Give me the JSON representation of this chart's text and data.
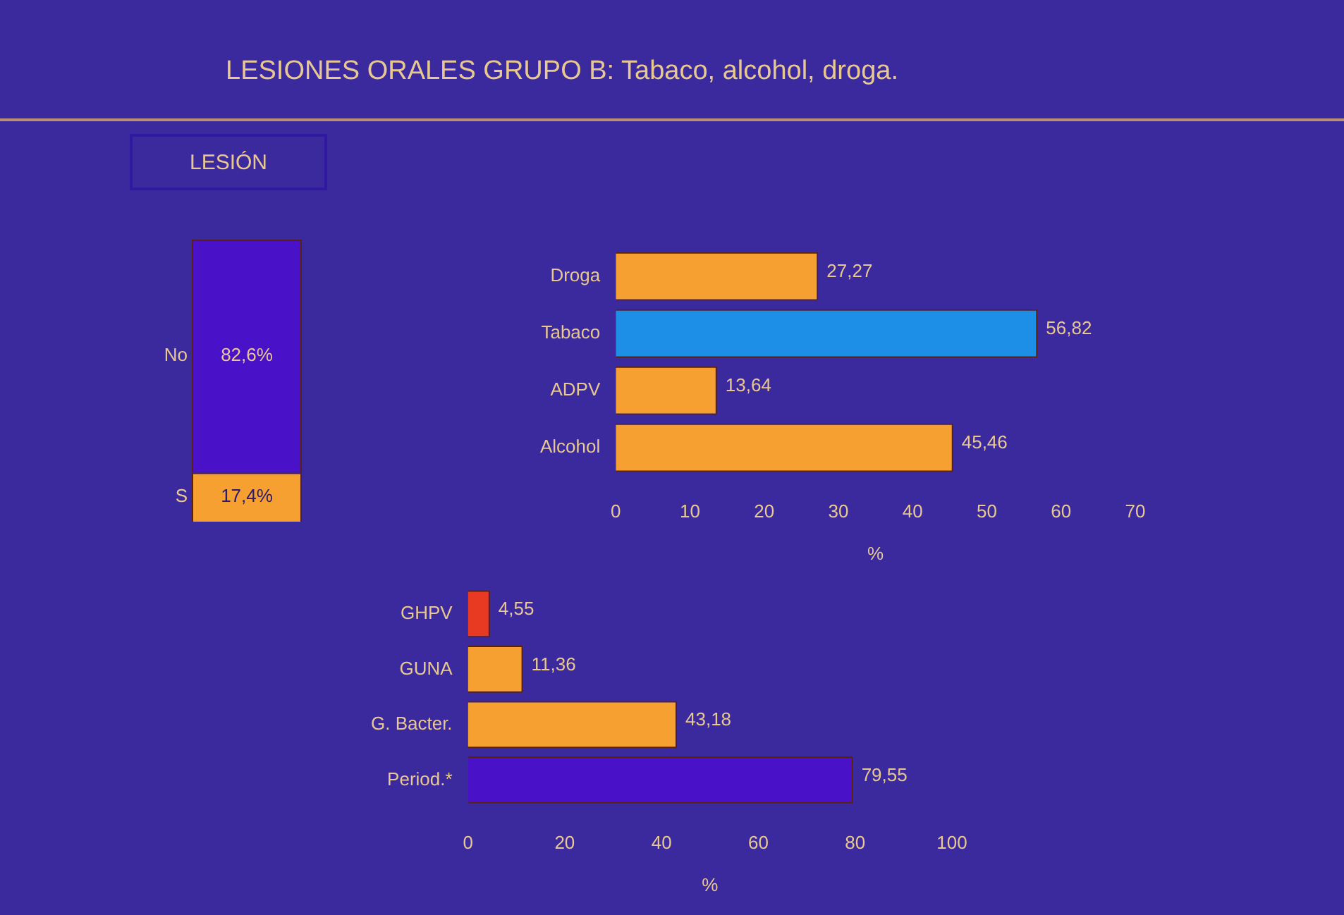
{
  "chart_data": [
    {
      "type": "bar",
      "stacked": true,
      "title": "LESIONES ORALES GRUPO B: Tabaco, alcohol, droga.",
      "subtitle": "LESIÓN",
      "categories": [
        null
      ],
      "series": [
        {
          "name": "S",
          "color": "#f5a030",
          "values": [
            17.4
          ],
          "value_labels": [
            "17,4%"
          ]
        },
        {
          "name": "No",
          "color": "#4a12c8",
          "values": [
            82.6
          ],
          "value_labels": [
            "82,6%"
          ]
        }
      ]
    },
    {
      "type": "bar",
      "orientation": "horizontal",
      "categories": [
        "Droga",
        "Tabaco",
        "ADPV",
        "Alcohol"
      ],
      "values": [
        27.27,
        56.82,
        13.64,
        45.46
      ],
      "colors": [
        "#f5a030",
        "#1e8fe6",
        "#f5a030",
        "#f5a030"
      ],
      "value_labels": [
        "27,27",
        "56,82",
        "13,64",
        "45,46"
      ],
      "xlim": [
        0,
        70
      ],
      "xticks": [
        0,
        10,
        20,
        30,
        40,
        50,
        60,
        70
      ],
      "xlabel": "%"
    },
    {
      "type": "bar",
      "orientation": "horizontal",
      "categories": [
        "GHPV",
        "GUNA",
        "G. Bacter.",
        "Period.*"
      ],
      "values": [
        4.55,
        11.36,
        43.18,
        79.55
      ],
      "colors": [
        "#e83a22",
        "#f5a030",
        "#f5a030",
        "#4a12c8"
      ],
      "value_labels": [
        "4,55",
        "11,36",
        "43,18",
        "79,55"
      ],
      "xlim": [
        0,
        100
      ],
      "xticks": [
        0,
        20,
        40,
        60,
        80,
        100
      ],
      "xlabel": "%"
    }
  ]
}
